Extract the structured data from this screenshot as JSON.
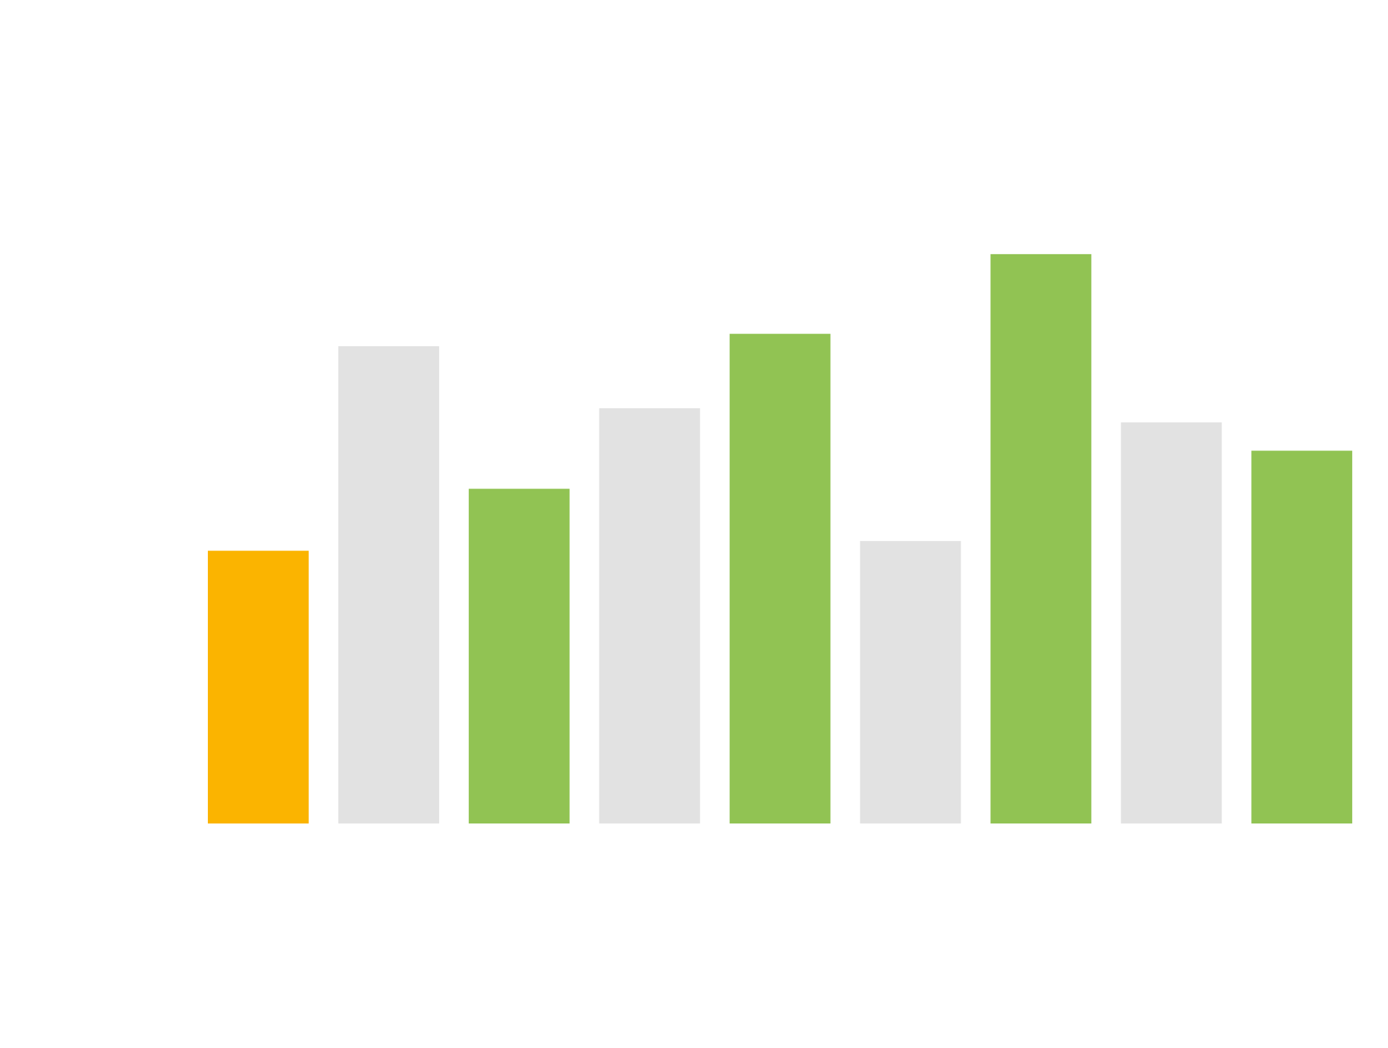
{
  "chart_data": {
    "type": "bar",
    "values": [
      308,
      539,
      378,
      469,
      553,
      319,
      643,
      453,
      421
    ],
    "colors": [
      "#fbb400",
      "#e2e2e2",
      "#91c353",
      "#e2e2e2",
      "#91c353",
      "#e2e2e2",
      "#91c353",
      "#e2e2e2",
      "#91c353"
    ],
    "ylim": [
      0,
      930
    ]
  }
}
